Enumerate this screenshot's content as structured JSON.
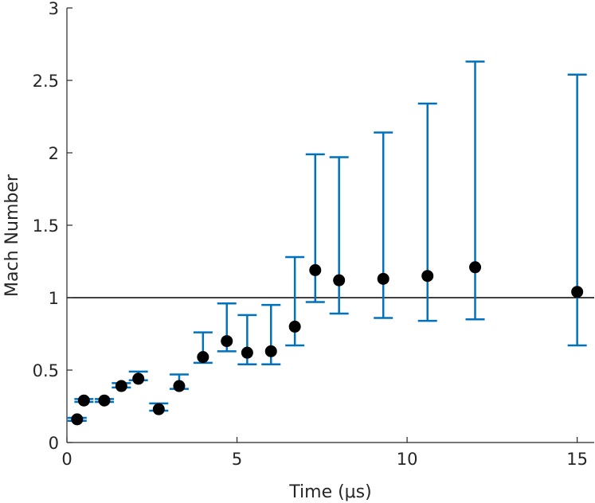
{
  "chart_data": {
    "type": "scatter",
    "xlabel": "Time (μs)",
    "ylabel": "Mach Number",
    "xlim": [
      0,
      15.5
    ],
    "ylim": [
      0,
      3
    ],
    "xticks": [
      0,
      5,
      10,
      15
    ],
    "xtick_labels": [
      "0",
      "5",
      "10",
      "15"
    ],
    "yticks": [
      0,
      0.5,
      1,
      1.5,
      2,
      2.5,
      3
    ],
    "ytick_labels": [
      "0",
      "0.5",
      "1",
      "1.5",
      "2",
      "2.5",
      "3"
    ],
    "grid": false,
    "reference_line": {
      "y": 1,
      "color": "#000000"
    },
    "series": [
      {
        "marker_color": "#000000",
        "errorbar_color": "#0072bd",
        "points": [
          {
            "x": 0.3,
            "y": 0.16,
            "lo": 0.15,
            "hi": 0.17
          },
          {
            "x": 0.5,
            "y": 0.29,
            "lo": 0.28,
            "hi": 0.3
          },
          {
            "x": 1.1,
            "y": 0.29,
            "lo": 0.28,
            "hi": 0.3
          },
          {
            "x": 1.6,
            "y": 0.39,
            "lo": 0.38,
            "hi": 0.41
          },
          {
            "x": 2.1,
            "y": 0.44,
            "lo": 0.43,
            "hi": 0.49
          },
          {
            "x": 2.7,
            "y": 0.23,
            "lo": 0.22,
            "hi": 0.27
          },
          {
            "x": 3.3,
            "y": 0.39,
            "lo": 0.37,
            "hi": 0.47
          },
          {
            "x": 4.0,
            "y": 0.59,
            "lo": 0.55,
            "hi": 0.76
          },
          {
            "x": 4.7,
            "y": 0.7,
            "lo": 0.63,
            "hi": 0.96
          },
          {
            "x": 5.3,
            "y": 0.62,
            "lo": 0.54,
            "hi": 0.88
          },
          {
            "x": 6.0,
            "y": 0.63,
            "lo": 0.54,
            "hi": 0.95
          },
          {
            "x": 6.7,
            "y": 0.8,
            "lo": 0.67,
            "hi": 1.28
          },
          {
            "x": 7.3,
            "y": 1.19,
            "lo": 0.97,
            "hi": 1.99
          },
          {
            "x": 8.0,
            "y": 1.12,
            "lo": 0.89,
            "hi": 1.97
          },
          {
            "x": 9.3,
            "y": 1.13,
            "lo": 0.86,
            "hi": 2.14
          },
          {
            "x": 10.6,
            "y": 1.15,
            "lo": 0.84,
            "hi": 2.34
          },
          {
            "x": 12.0,
            "y": 1.21,
            "lo": 0.85,
            "hi": 2.63
          },
          {
            "x": 15.0,
            "y": 1.04,
            "lo": 0.67,
            "hi": 2.54
          }
        ]
      }
    ]
  }
}
